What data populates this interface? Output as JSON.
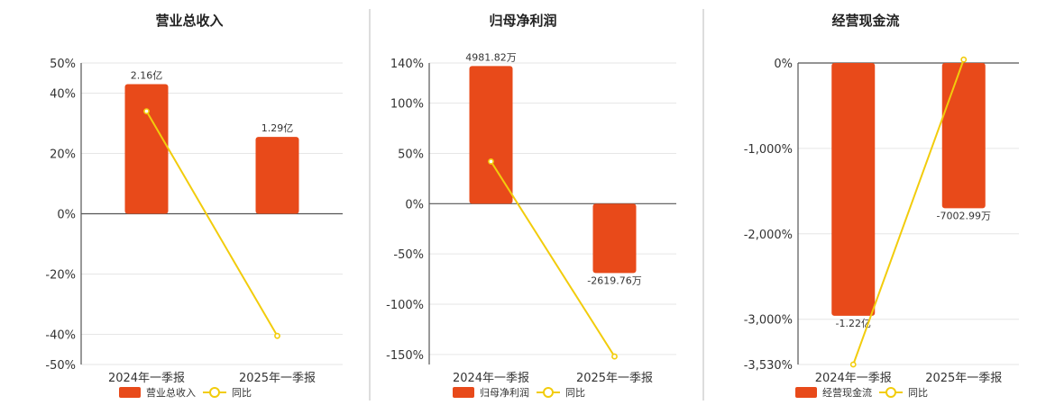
{
  "colors": {
    "bar": "#e84a1a",
    "line": "#f2cc0c",
    "point_fill": "#ffffff"
  },
  "legend": {
    "line_label": "同比"
  },
  "chart_data": [
    {
      "type": "bar",
      "title": "营业总收入",
      "categories": [
        "2024年一季报",
        "2025年一季报"
      ],
      "series": [
        {
          "name": "营业总收入",
          "type": "bar",
          "values": [
            43,
            25.5
          ],
          "labels": [
            "2.16亿",
            "1.29亿"
          ]
        },
        {
          "name": "同比",
          "type": "line",
          "values": [
            34,
            -40.5
          ]
        }
      ],
      "ylim": [
        -50,
        50
      ],
      "yticks": [
        50,
        40,
        20,
        0,
        -20,
        -40,
        -50
      ],
      "ytick_labels": [
        "50%",
        "40%",
        "20%",
        "0%",
        "-20%",
        "-40%",
        "-50%"
      ],
      "xlabel": "",
      "ylabel": ""
    },
    {
      "type": "bar",
      "title": "归母净利润",
      "categories": [
        "2024年一季报",
        "2025年一季报"
      ],
      "series": [
        {
          "name": "归母净利润",
          "type": "bar",
          "values": [
            137,
            -69
          ],
          "labels": [
            "4981.82万",
            "-2619.76万"
          ]
        },
        {
          "name": "同比",
          "type": "line",
          "values": [
            42,
            -152
          ]
        }
      ],
      "ylim": [
        -160,
        140
      ],
      "yticks": [
        140,
        100,
        50,
        0,
        -50,
        -100,
        -150
      ],
      "ytick_labels": [
        "140%",
        "100%",
        "50%",
        "0%",
        "-50%",
        "-100%",
        "-150%"
      ],
      "xlabel": "",
      "ylabel": ""
    },
    {
      "type": "bar",
      "title": "经营现金流",
      "categories": [
        "2024年一季报",
        "2025年一季报"
      ],
      "series": [
        {
          "name": "经营现金流",
          "type": "bar",
          "values": [
            -2960,
            -1700
          ],
          "labels": [
            "-1.22亿",
            "-7002.99万"
          ]
        },
        {
          "name": "同比",
          "type": "line",
          "values": [
            -3530,
            40
          ]
        }
      ],
      "ylim": [
        -3530,
        0
      ],
      "yticks": [
        0,
        -1000,
        -2000,
        -3000,
        -3530
      ],
      "ytick_labels": [
        "0%",
        "-1,000%",
        "-2,000%",
        "-3,000%",
        "-3,530%"
      ],
      "xlabel": "",
      "ylabel": ""
    }
  ]
}
